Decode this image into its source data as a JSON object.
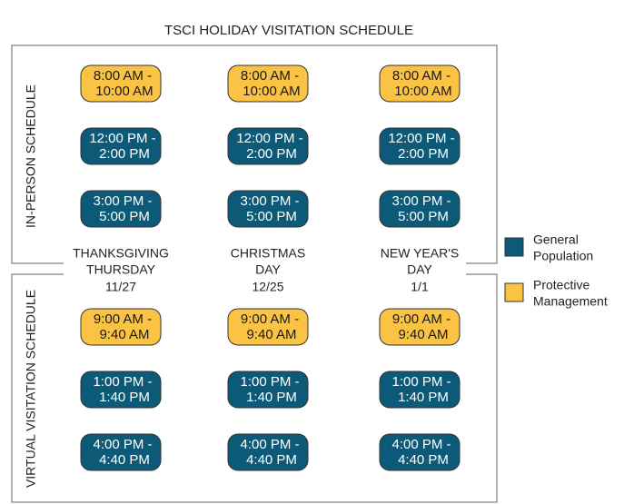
{
  "title": "TSCI HOLIDAY VISITATION SCHEDULE",
  "days": [
    {
      "name_lines": [
        "THANKSGIVING",
        "THURSDAY"
      ],
      "date": "11/27"
    },
    {
      "name_lines": [
        "CHRISTMAS",
        "DAY"
      ],
      "date": "12/25"
    },
    {
      "name_lines": [
        "NEW YEAR'S",
        "DAY"
      ],
      "date": "1/1"
    }
  ],
  "sections": [
    {
      "label": "IN-PERSON SCHEDULE",
      "rows": [
        {
          "color": "#fbc343",
          "cells": [
            {
              "lines": [
                "8:00 AM -",
                "10:00 AM"
              ]
            },
            {
              "lines": [
                "8:00 AM -",
                "10:00 AM"
              ]
            },
            {
              "lines": [
                "8:00 AM -",
                "10:00 AM"
              ]
            }
          ]
        },
        {
          "color": "#0c5a78",
          "cells": [
            {
              "lines": [
                "12:00 PM -",
                "2:00 PM"
              ]
            },
            {
              "lines": [
                "12:00 PM -",
                "2:00 PM"
              ]
            },
            {
              "lines": [
                "12:00 PM -",
                "2:00 PM"
              ]
            }
          ]
        },
        {
          "color": "#0c5a78",
          "cells": [
            {
              "lines": [
                "3:00 PM -",
                "5:00 PM"
              ]
            },
            {
              "lines": [
                "3:00 PM -",
                "5:00 PM"
              ]
            },
            {
              "lines": [
                "3:00 PM -",
                "5:00 PM"
              ]
            }
          ]
        }
      ]
    },
    {
      "label": "VIRTUAL VISITATION SCHEDULE",
      "rows": [
        {
          "color": "#fbc343",
          "cells": [
            {
              "lines": [
                "9:00 AM -",
                "9:40 AM"
              ]
            },
            {
              "lines": [
                "9:00 AM -",
                "9:40 AM"
              ]
            },
            {
              "lines": [
                "9:00 AM -",
                "9:40 AM"
              ]
            }
          ]
        },
        {
          "color": "#0c5a78",
          "cells": [
            {
              "lines": [
                "1:00 PM -",
                "1:40 PM"
              ]
            },
            {
              "lines": [
                "1:00 PM -",
                "1:40 PM"
              ]
            },
            {
              "lines": [
                "1:00 PM -",
                "1:40 PM"
              ]
            }
          ]
        },
        {
          "color": "#0c5a78",
          "cells": [
            {
              "lines": [
                "4:00 PM -",
                "4:40 PM"
              ]
            },
            {
              "lines": [
                "4:00 PM -",
                "4:40 PM"
              ]
            },
            {
              "lines": [
                "4:00 PM -",
                "4:40 PM"
              ]
            }
          ]
        }
      ]
    }
  ],
  "legend": [
    {
      "color": "#0c5a78",
      "lines": [
        "General",
        "Population"
      ]
    },
    {
      "color": "#fbc343",
      "lines": [
        "Protective",
        "Management"
      ]
    }
  ]
}
